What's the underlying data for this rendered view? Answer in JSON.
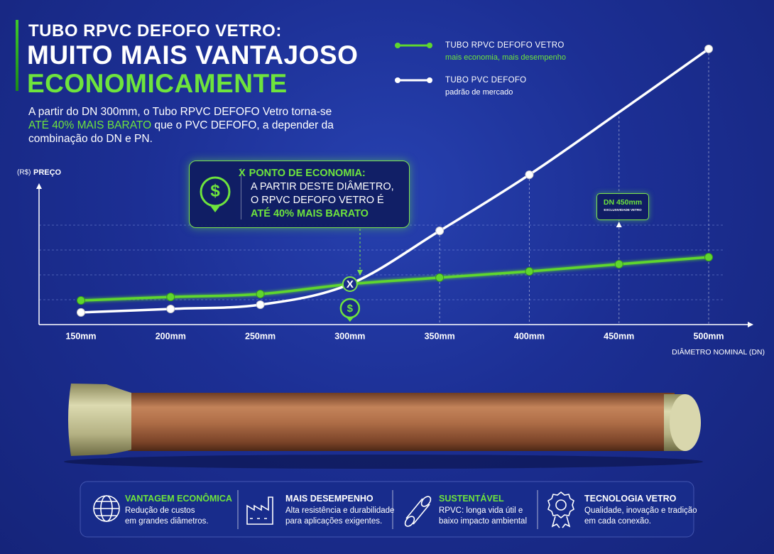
{
  "header": {
    "kicker": "TUBO RPVC DEFOFO VETRO:",
    "title_line1": "MUITO MAIS VANTAJOSO",
    "title_line2": "ECONOMICAMENTE",
    "intro": [
      "A partir do DN 300mm, o Tubo RPVC DEFOFO Vetro torna-se ",
      "ATÉ 40% MAIS BARATO",
      " que o PVC DEFOFO, a depender da combinação do DN e PN."
    ]
  },
  "chart_data": {
    "type": "line",
    "y_label_unit": "(R$)",
    "y_label": "PREÇO",
    "x_label": "DIÂMETRO NOMINAL (DN)",
    "categories": [
      "150mm",
      "200mm",
      "250mm",
      "300mm",
      "350mm",
      "400mm",
      "450mm",
      "500mm"
    ],
    "ylim": [
      0,
      12
    ],
    "yticks": [
      1,
      2,
      3,
      4
    ],
    "grid": true,
    "series": [
      {
        "name": "TUBO RPVC DEFOFO VETRO",
        "description": "mais economia, mais desempenho",
        "color": "#5fd62e",
        "values": [
          0.97,
          1.11,
          1.23,
          1.63,
          1.89,
          2.14,
          2.43,
          2.71
        ]
      },
      {
        "name": "TUBO PVC DEFOFO",
        "description": "padrão de mercado",
        "color": "#ffffff",
        "values": [
          0.49,
          0.63,
          0.8,
          1.63,
          3.77,
          6.03,
          8.54,
          11.09
        ]
      }
    ]
  },
  "callout": {
    "marker": "X",
    "title": "PONTO DE ECONOMIA:",
    "line1": "A PARTIR DESTE DIÂMETRO,",
    "line2": "O RPVC DEFOFO VETRO É",
    "highlight": "ATÉ 40% MAIS BARATO"
  },
  "badge": {
    "title": "DN 450mm",
    "subtitle": "EXCLUSIVIDADE VETRO"
  },
  "features": [
    {
      "title": "VANTAGEM ECONÔMICA",
      "line1": "Redução de custos",
      "line2": "em grandes diâmetros."
    },
    {
      "title": "MAIS DESEMPENHO",
      "line1": "Alta resistência e durabilidade",
      "line2": "para aplicações exigentes."
    },
    {
      "title": "SUSTENTÁVEL",
      "line1": "RPVC: longa vida útil e",
      "line2": "baixo impacto ambiental"
    },
    {
      "title": "TECNOLOGIA VETRO",
      "line1": "Qualidade, inovação e tradição",
      "line2": "em cada conexão."
    }
  ]
}
